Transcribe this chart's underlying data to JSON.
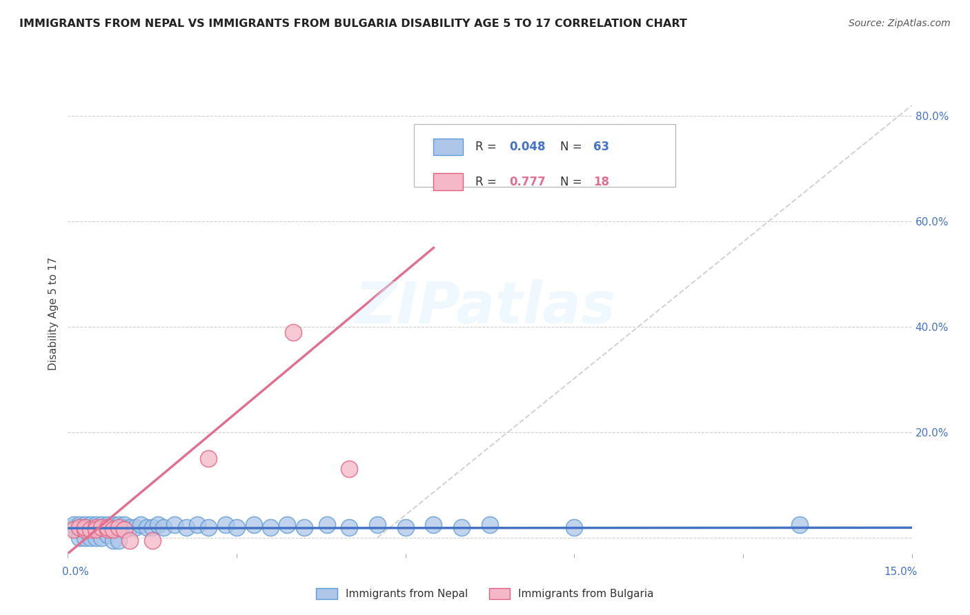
{
  "title": "IMMIGRANTS FROM NEPAL VS IMMIGRANTS FROM BULGARIA DISABILITY AGE 5 TO 17 CORRELATION CHART",
  "source": "Source: ZipAtlas.com",
  "ylabel": "Disability Age 5 to 17",
  "y_ticks": [
    0.0,
    0.2,
    0.4,
    0.6,
    0.8
  ],
  "y_tick_labels": [
    "",
    "20.0%",
    "40.0%",
    "60.0%",
    "80.0%"
  ],
  "x_range": [
    0.0,
    0.15
  ],
  "y_range": [
    -0.03,
    0.88
  ],
  "nepal_color": "#aec6e8",
  "nepal_edge_color": "#5b9bd5",
  "bulgaria_color": "#f4b8c8",
  "bulgaria_edge_color": "#e06080",
  "nepal_R": 0.048,
  "nepal_N": 63,
  "bulgaria_R": 0.777,
  "bulgaria_N": 18,
  "nepal_line_color": "#4472c4",
  "bulgaria_line_color": "#e07090",
  "diagonal_color": "#c8c8c8",
  "legend_label_nepal": "Immigrants from Nepal",
  "legend_label_bulgaria": "Immigrants from Bulgaria",
  "nepal_scatter_x": [
    0.001,
    0.001,
    0.002,
    0.002,
    0.002,
    0.003,
    0.003,
    0.003,
    0.004,
    0.004,
    0.004,
    0.005,
    0.005,
    0.005,
    0.006,
    0.006,
    0.006,
    0.007,
    0.007,
    0.007,
    0.008,
    0.008,
    0.008,
    0.009,
    0.009,
    0.009,
    0.01,
    0.01,
    0.01,
    0.011,
    0.012,
    0.013,
    0.014,
    0.015,
    0.016,
    0.017,
    0.019,
    0.021,
    0.023,
    0.025,
    0.028,
    0.03,
    0.033,
    0.036,
    0.039,
    0.042,
    0.046,
    0.05,
    0.055,
    0.06,
    0.002,
    0.003,
    0.004,
    0.005,
    0.006,
    0.007,
    0.008,
    0.009,
    0.065,
    0.07,
    0.075,
    0.09,
    0.13
  ],
  "nepal_scatter_y": [
    0.02,
    0.025,
    0.015,
    0.02,
    0.025,
    0.02,
    0.025,
    0.015,
    0.02,
    0.025,
    0.015,
    0.02,
    0.025,
    0.015,
    0.02,
    0.025,
    0.015,
    0.02,
    0.025,
    0.015,
    0.02,
    0.025,
    0.015,
    0.02,
    0.025,
    0.015,
    0.02,
    0.025,
    0.015,
    0.02,
    0.02,
    0.025,
    0.02,
    0.02,
    0.025,
    0.02,
    0.025,
    0.02,
    0.025,
    0.02,
    0.025,
    0.02,
    0.025,
    0.02,
    0.025,
    0.02,
    0.025,
    0.02,
    0.025,
    0.02,
    0.0,
    0.0,
    0.0,
    0.0,
    0.0,
    0.005,
    -0.005,
    -0.005,
    0.025,
    0.02,
    0.025,
    0.02,
    0.025
  ],
  "bulgaria_scatter_x": [
    0.001,
    0.002,
    0.003,
    0.003,
    0.004,
    0.005,
    0.005,
    0.006,
    0.007,
    0.007,
    0.008,
    0.009,
    0.01,
    0.011,
    0.015,
    0.025,
    0.04,
    0.05
  ],
  "bulgaria_scatter_y": [
    0.015,
    0.02,
    0.015,
    0.02,
    0.015,
    0.02,
    0.015,
    0.02,
    0.015,
    0.02,
    0.015,
    0.02,
    0.015,
    -0.005,
    -0.005,
    0.15,
    0.39,
    0.13
  ],
  "nepal_line_x": [
    0.0,
    0.15
  ],
  "nepal_line_y": [
    0.018,
    0.019
  ],
  "bulgaria_line_x": [
    0.0,
    0.065
  ],
  "bulgaria_line_y": [
    -0.03,
    0.55
  ],
  "diagonal_line_x": [
    0.055,
    0.15
  ],
  "diagonal_line_y": [
    0.0,
    0.82
  ]
}
